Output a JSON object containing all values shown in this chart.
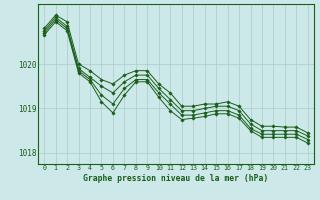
{
  "title": "Graphe pression niveau de la mer (hPa)",
  "bg_color": "#cce8e8",
  "line_color": "#1a5e1a",
  "grid_color": "#aacccc",
  "xlim": [
    -0.5,
    23.5
  ],
  "ylim": [
    1017.75,
    1021.35
  ],
  "yticks": [
    1018,
    1019,
    1020
  ],
  "xticks": [
    0,
    1,
    2,
    3,
    4,
    5,
    6,
    7,
    8,
    9,
    10,
    11,
    12,
    13,
    14,
    15,
    16,
    17,
    18,
    19,
    20,
    21,
    22,
    23
  ],
  "series": [
    [
      1020.8,
      1021.1,
      1020.95,
      1020.0,
      1019.85,
      1019.65,
      1019.55,
      1019.75,
      1019.85,
      1019.85,
      1019.55,
      1019.35,
      1019.05,
      1019.05,
      1019.1,
      1019.1,
      1019.15,
      1019.05,
      1018.75,
      1018.6,
      1018.6,
      1018.58,
      1018.58,
      1018.45
    ],
    [
      1020.75,
      1021.05,
      1020.85,
      1019.9,
      1019.7,
      1019.5,
      1019.35,
      1019.6,
      1019.75,
      1019.75,
      1019.45,
      1019.2,
      1018.95,
      1018.95,
      1019.0,
      1019.05,
      1019.05,
      1018.95,
      1018.65,
      1018.5,
      1018.5,
      1018.5,
      1018.5,
      1018.38
    ],
    [
      1020.7,
      1021.0,
      1020.8,
      1019.85,
      1019.65,
      1019.3,
      1019.1,
      1019.45,
      1019.65,
      1019.65,
      1019.35,
      1019.1,
      1018.85,
      1018.85,
      1018.9,
      1018.95,
      1018.95,
      1018.85,
      1018.55,
      1018.42,
      1018.42,
      1018.42,
      1018.42,
      1018.3
    ],
    [
      1020.65,
      1020.95,
      1020.75,
      1019.8,
      1019.6,
      1019.15,
      1018.9,
      1019.3,
      1019.6,
      1019.6,
      1019.25,
      1018.95,
      1018.75,
      1018.78,
      1018.82,
      1018.88,
      1018.88,
      1018.78,
      1018.5,
      1018.35,
      1018.35,
      1018.35,
      1018.35,
      1018.22
    ]
  ]
}
